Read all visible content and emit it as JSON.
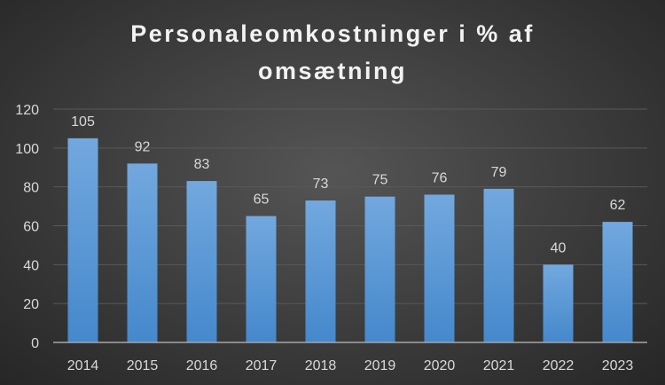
{
  "chart_data": {
    "type": "bar",
    "title_lines": [
      "Personaleomkostninger i % af",
      "omsætning"
    ],
    "categories": [
      "2014",
      "2015",
      "2016",
      "2017",
      "2018",
      "2019",
      "2020",
      "2021",
      "2022",
      "2023"
    ],
    "values": [
      105,
      92,
      83,
      65,
      73,
      75,
      76,
      79,
      40,
      62
    ],
    "data_labels": [
      "105",
      "92",
      "83",
      "65",
      "73",
      "75",
      "76",
      "79",
      "40",
      "62"
    ],
    "xlabel": "",
    "ylabel": "",
    "ylim": [
      0,
      120
    ],
    "yticks": [
      0,
      20,
      40,
      60,
      80,
      100,
      120
    ],
    "ytick_labels": [
      "0",
      "20",
      "40",
      "60",
      "80",
      "100",
      "120"
    ],
    "grid": true,
    "legend": "none",
    "colors": {
      "bar_top": "#72a8de",
      "bar_bottom": "#4588cc",
      "text": "#d9d9d9",
      "grid": "#595959",
      "axis": "#a6a6a6"
    }
  }
}
